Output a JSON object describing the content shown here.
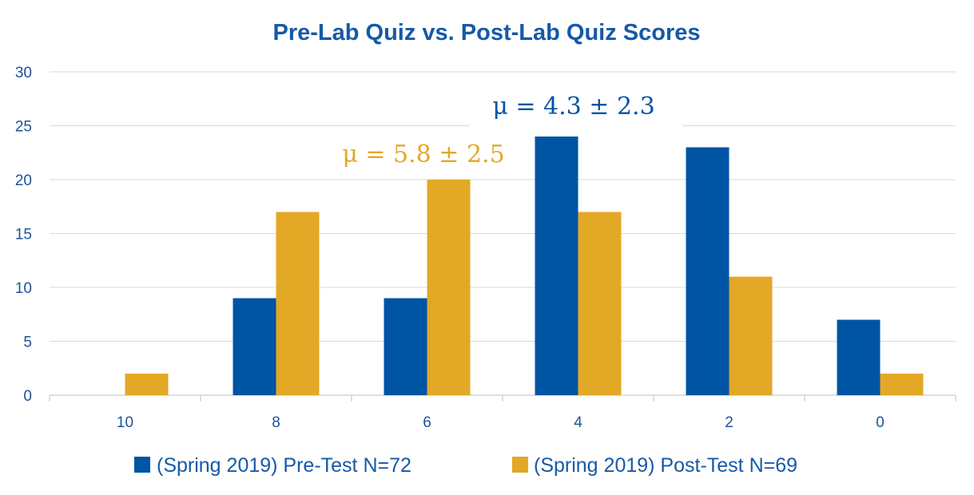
{
  "colors": {
    "pre": "#0054a4",
    "post": "#e3a826",
    "title": "#1659a8",
    "axis_text": "#1f5396",
    "grid": "#d9d9d9",
    "axis": "#bfbfbf"
  },
  "chart_data": {
    "type": "bar",
    "title": "Pre-Lab Quiz vs. Post-Lab Quiz Scores",
    "categories": [
      "10",
      "8",
      "6",
      "4",
      "2",
      "0"
    ],
    "series": [
      {
        "name": "(Spring 2019) Pre-Test N=72",
        "values": [
          0,
          9,
          9,
          24,
          23,
          7
        ]
      },
      {
        "name": "(Spring 2019) Post-Test N=69",
        "values": [
          2,
          17,
          20,
          17,
          11,
          2
        ]
      }
    ],
    "ylim": [
      0,
      30
    ],
    "yticks": [
      "0",
      "5",
      "10",
      "15",
      "20",
      "25",
      "30"
    ],
    "grid": true,
    "legend_position": "bottom",
    "annotations": [
      {
        "text": "μ = 4.3 ± 2.3",
        "series": "pre"
      },
      {
        "text": "μ = 5.8 ± 2.5",
        "series": "post"
      }
    ]
  }
}
